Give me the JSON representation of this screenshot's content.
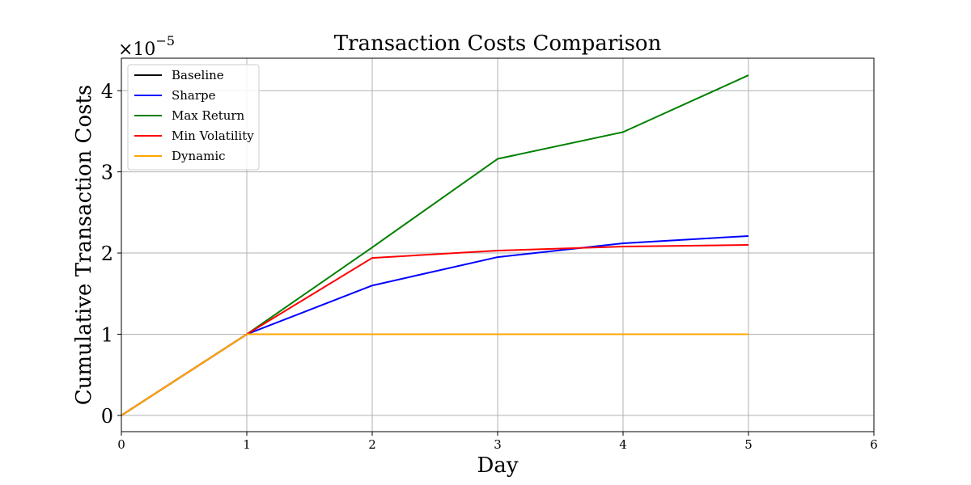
{
  "chart_data": {
    "type": "line",
    "title": "Transaction Costs Comparison",
    "xlabel": "Day",
    "ylabel": "Cumulative Transaction Costs",
    "y_offset_label": {
      "base": "×10",
      "exponent": "−5"
    },
    "xlim": [
      0,
      6
    ],
    "ylim": [
      -0.2,
      4.4
    ],
    "x_ticks": [
      "0",
      "1",
      "2",
      "3",
      "4",
      "5",
      "6"
    ],
    "y_ticks": [
      "0",
      "1",
      "2",
      "3",
      "4"
    ],
    "grid": true,
    "legend_position": "top-left",
    "x": [
      0,
      1,
      2,
      3,
      4,
      5
    ],
    "series": [
      {
        "name": "Baseline",
        "color": "#000000",
        "values": [
          0,
          1.0,
          1.0,
          1.0,
          1.0,
          1.0
        ]
      },
      {
        "name": "Sharpe",
        "color": "#0000ff",
        "values": [
          0,
          1.0,
          1.6,
          1.95,
          2.12,
          2.21
        ]
      },
      {
        "name": "Max Return",
        "color": "#008000",
        "values": [
          0,
          1.0,
          2.07,
          3.16,
          3.49,
          4.19
        ]
      },
      {
        "name": "Min Volatility",
        "color": "#ff0000",
        "values": [
          0,
          1.0,
          1.94,
          2.03,
          2.08,
          2.1
        ]
      },
      {
        "name": "Dynamic",
        "color": "#ffa500",
        "values": [
          0,
          1.0,
          1.0,
          1.0,
          1.0,
          1.0
        ]
      }
    ]
  }
}
